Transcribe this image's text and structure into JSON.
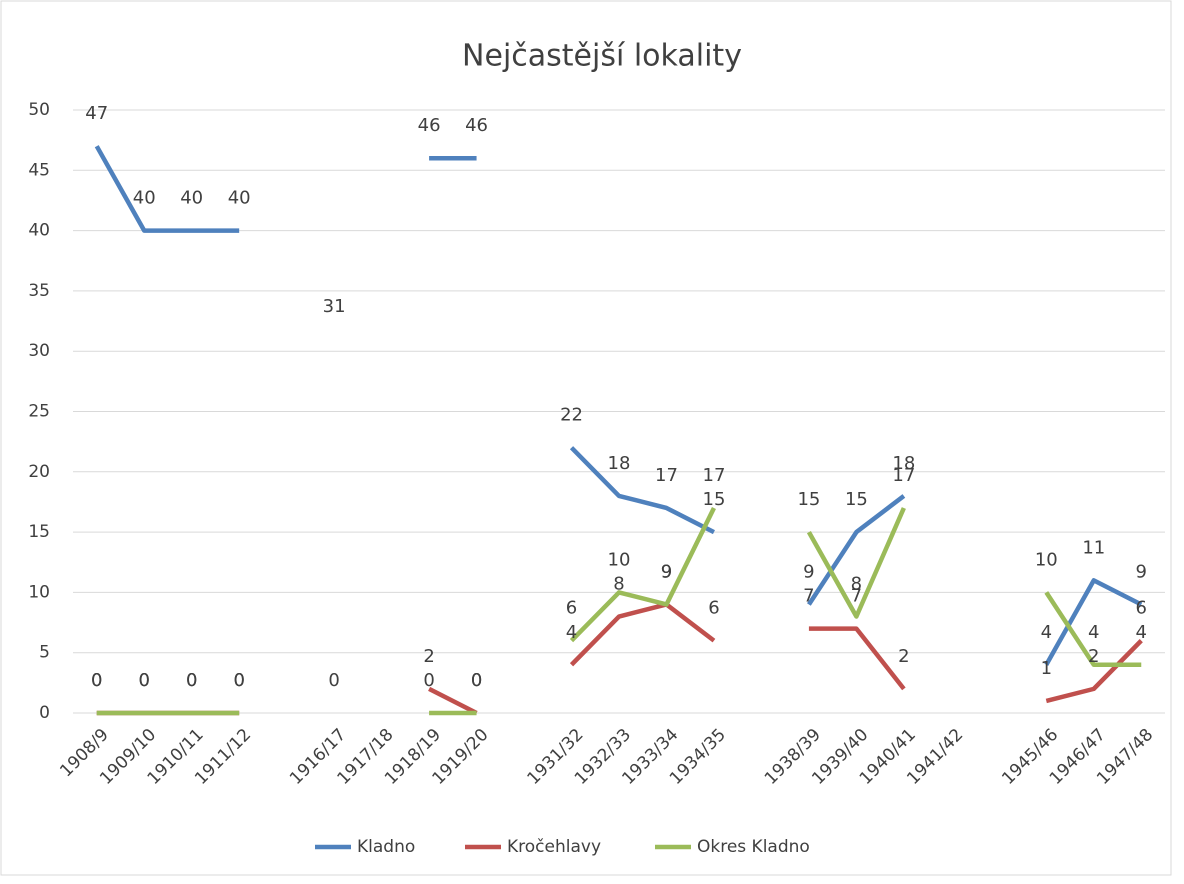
{
  "chart_data": {
    "type": "line",
    "title": "Nejčastější lokality",
    "categories": [
      "1908/9",
      "1909/10",
      "1910/11",
      "1911/12",
      null,
      "1916/17",
      "1917/18",
      "1918/19",
      "1919/20",
      null,
      "1931/32",
      "1932/33",
      "1933/34",
      "1934/35",
      null,
      "1938/39",
      "1939/40",
      "1940/41",
      "1941/42",
      null,
      "1945/46",
      "1946/47",
      "1947/48"
    ],
    "series": [
      {
        "name": "Kladno",
        "color": "#4f81bd",
        "values": [
          47,
          40,
          40,
          40,
          null,
          31,
          null,
          46,
          46,
          null,
          22,
          18,
          17,
          15,
          null,
          9,
          15,
          18,
          null,
          null,
          4,
          11,
          9
        ]
      },
      {
        "name": "Kročehlavy",
        "color": "#c0504d",
        "values": [
          0,
          0,
          0,
          0,
          null,
          null,
          null,
          2,
          0,
          null,
          4,
          8,
          9,
          6,
          null,
          7,
          7,
          2,
          null,
          null,
          1,
          2,
          6
        ]
      },
      {
        "name": "Okres Kladno",
        "color": "#9bbb59",
        "values": [
          0,
          0,
          0,
          0,
          null,
          0,
          null,
          0,
          0,
          null,
          6,
          10,
          9,
          17,
          null,
          15,
          8,
          17,
          null,
          null,
          10,
          4,
          4
        ]
      }
    ],
    "ylim": [
      0,
      50
    ],
    "yticks": [
      0,
      5,
      10,
      15,
      20,
      25,
      30,
      35,
      40,
      45,
      50
    ],
    "grid": true,
    "legend": "bottom"
  }
}
